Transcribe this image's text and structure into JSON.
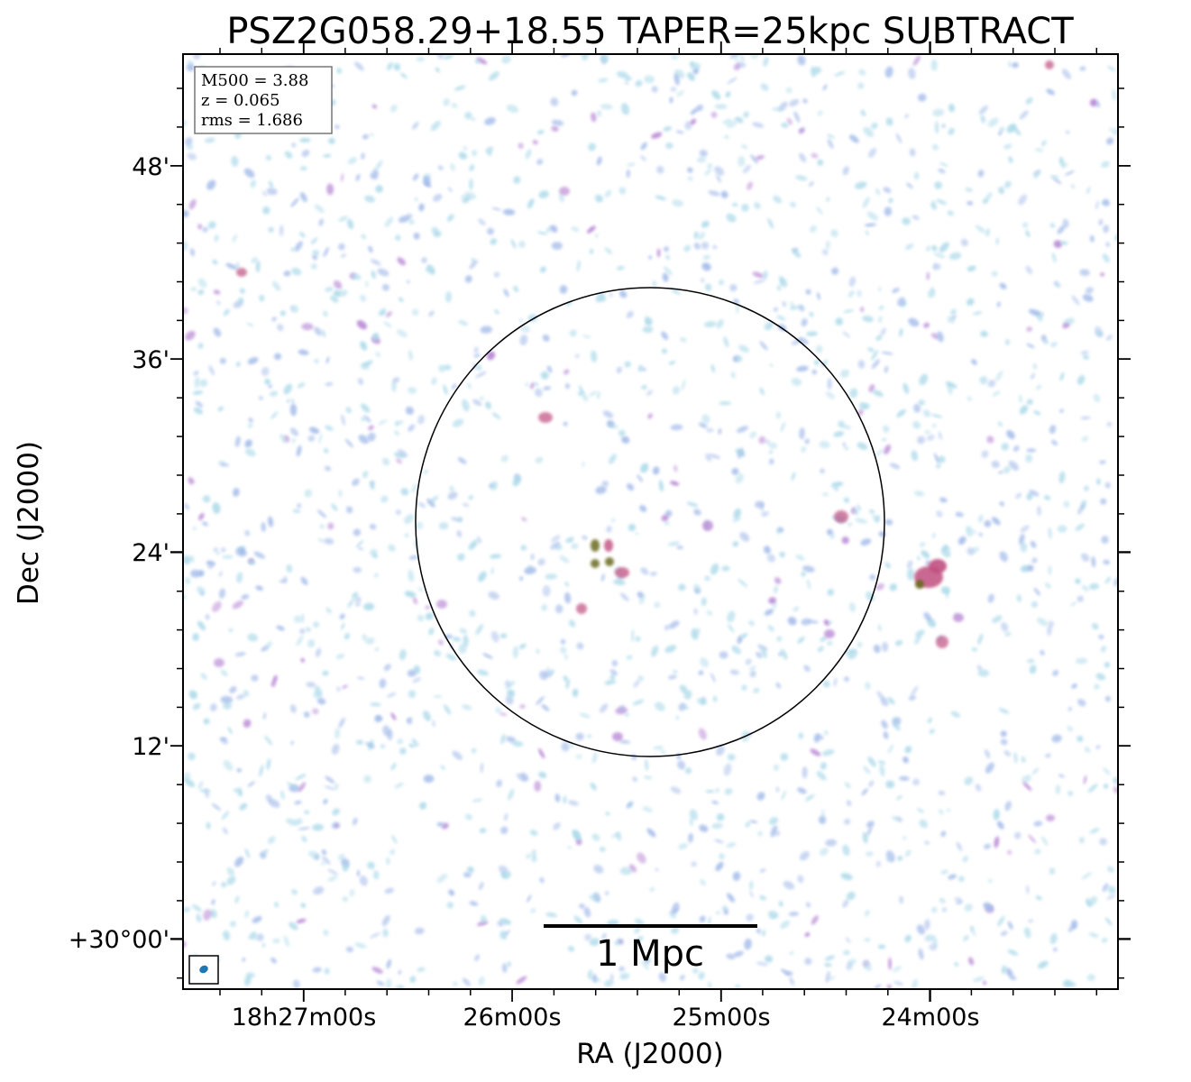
{
  "title": "PSZ2G058.29+18.55 TAPER=25kpc SUBTRACT",
  "axes": {
    "xlabel": "RA (J2000)",
    "ylabel": "Dec (J2000)",
    "xticks": [
      "18h27m00s",
      "26m00s",
      "25m00s",
      "24m00s"
    ],
    "yticks": [
      "48'",
      "36'",
      "24'",
      "12'",
      "+30°00'"
    ]
  },
  "info_box": {
    "line1": "M500 = 3.88",
    "line2": "z = 0.065",
    "line3": "rms = 1.686"
  },
  "scalebar": {
    "label": "1 Mpc"
  },
  "colors": {
    "noise_light": "#a8d8e8",
    "noise_mid": "#9fb8e8",
    "noise_strong": "#b07ad0",
    "source_core": "#c05080",
    "source_peak": "#6a6a20",
    "beam": "#1f77b4"
  }
}
